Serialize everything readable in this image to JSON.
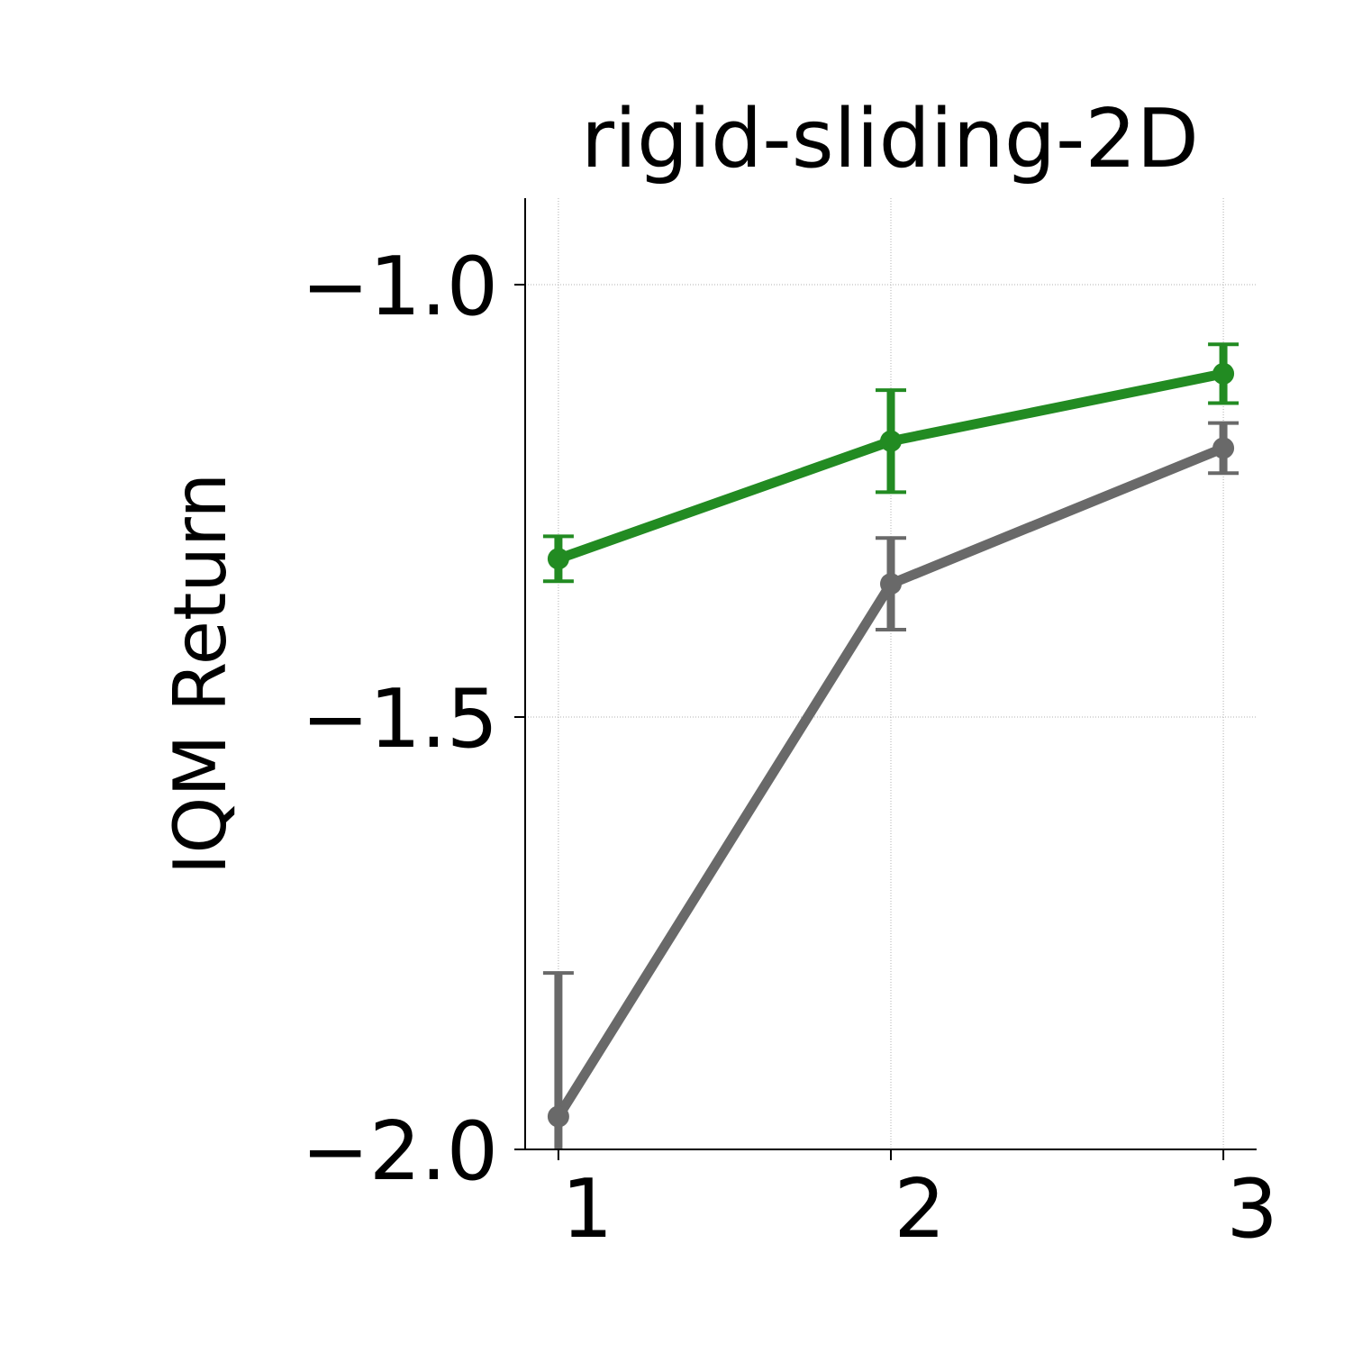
{
  "chart_data": {
    "type": "line",
    "title": "rigid-sliding-2D",
    "y_label": "IQM Return",
    "x": [
      1,
      2,
      3
    ],
    "series": [
      {
        "color": "#228b22",
        "values": [
          -1.317,
          -1.181,
          -1.103
        ],
        "errors": [
          0.026,
          0.059,
          0.034
        ]
      },
      {
        "color": "#696969",
        "values": [
          -1.962,
          -1.346,
          -1.189
        ],
        "errors": [
          0.166,
          0.053,
          0.029
        ]
      }
    ],
    "xlim": [
      0.9,
      3.1
    ],
    "ylim": [
      -2.0,
      -0.9
    ],
    "xticks": [
      1,
      2,
      3
    ],
    "yticks": [
      {
        "value": -2.0,
        "label": "−2.0"
      },
      {
        "value": -1.5,
        "label": "−1.5"
      },
      {
        "value": -1.0,
        "label": "−1.0"
      }
    ],
    "grid": true
  }
}
